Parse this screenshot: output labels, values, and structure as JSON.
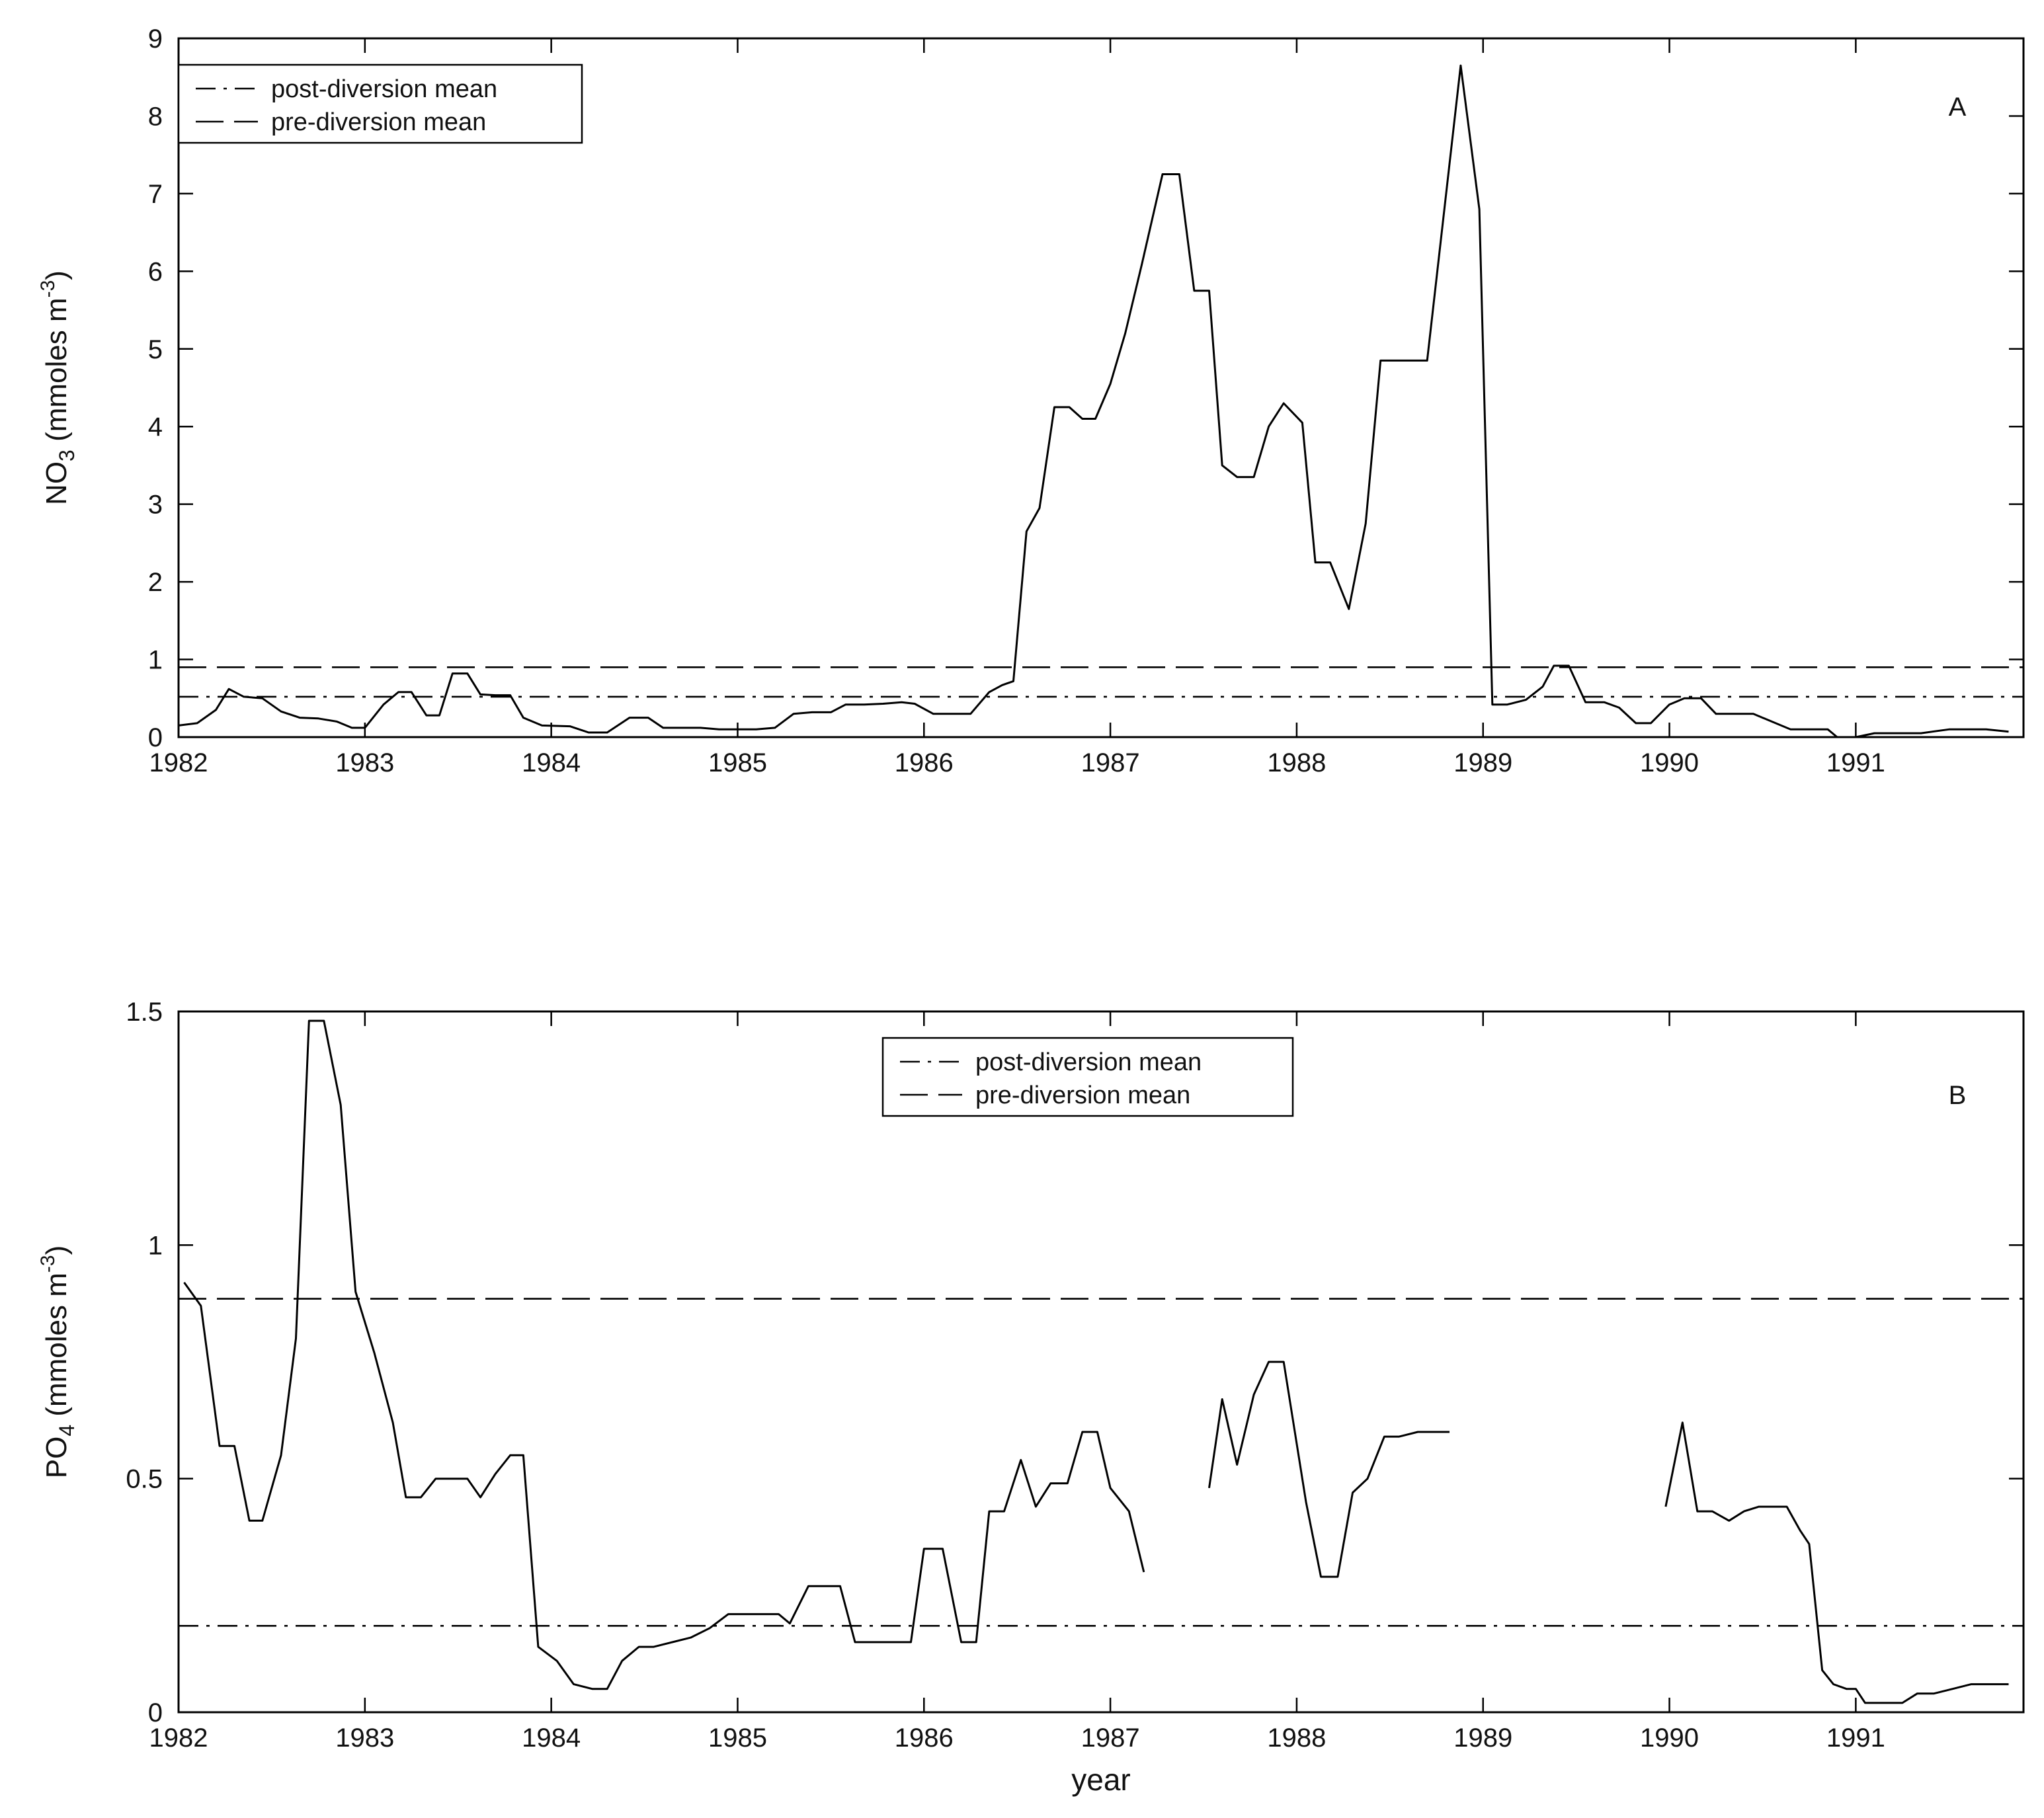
{
  "chart_data": [
    {
      "type": "line",
      "panel_label": "A",
      "xlabel": "",
      "ylabel_parts": [
        "NO",
        "3",
        "  (mmoles m",
        "-3",
        ")"
      ],
      "xlim": [
        1982,
        1991.9
      ],
      "ylim": [
        0,
        9
      ],
      "xticks": [
        1982,
        1983,
        1984,
        1985,
        1986,
        1987,
        1988,
        1989,
        1990,
        1991
      ],
      "yticks": [
        0,
        1,
        2,
        3,
        4,
        5,
        6,
        7,
        8,
        9
      ],
      "legend": {
        "placement": "top-left",
        "entries": [
          {
            "label": "post-diversion mean",
            "style": "dash-dot"
          },
          {
            "label": "pre-diversion mean",
            "style": "dashed"
          }
        ]
      },
      "reference_lines": [
        {
          "label": "post-diversion mean",
          "style": "dash-dot",
          "y": 0.52
        },
        {
          "label": "pre-diversion mean",
          "style": "dashed",
          "y": 0.9
        }
      ],
      "series": [
        {
          "style": "solid",
          "points": [
            [
              1982.0,
              0.15
            ],
            [
              1982.1,
              0.18
            ],
            [
              1982.2,
              0.35
            ],
            [
              1982.27,
              0.62
            ],
            [
              1982.35,
              0.52
            ],
            [
              1982.45,
              0.5
            ],
            [
              1982.55,
              0.33
            ],
            [
              1982.65,
              0.25
            ],
            [
              1982.75,
              0.24
            ],
            [
              1982.85,
              0.2
            ],
            [
              1982.93,
              0.12
            ],
            [
              1983.0,
              0.12
            ],
            [
              1983.1,
              0.42
            ],
            [
              1983.18,
              0.58
            ],
            [
              1983.25,
              0.58
            ],
            [
              1983.33,
              0.28
            ],
            [
              1983.4,
              0.28
            ],
            [
              1983.47,
              0.82
            ],
            [
              1983.55,
              0.82
            ],
            [
              1983.62,
              0.55
            ],
            [
              1983.7,
              0.54
            ],
            [
              1983.78,
              0.54
            ],
            [
              1983.85,
              0.25
            ],
            [
              1983.95,
              0.15
            ],
            [
              1984.1,
              0.14
            ],
            [
              1984.2,
              0.06
            ],
            [
              1984.3,
              0.06
            ],
            [
              1984.42,
              0.25
            ],
            [
              1984.52,
              0.25
            ],
            [
              1984.6,
              0.12
            ],
            [
              1984.7,
              0.12
            ],
            [
              1984.8,
              0.12
            ],
            [
              1984.9,
              0.1
            ],
            [
              1985.0,
              0.1
            ],
            [
              1985.1,
              0.1
            ],
            [
              1985.2,
              0.12
            ],
            [
              1985.3,
              0.3
            ],
            [
              1985.4,
              0.32
            ],
            [
              1985.5,
              0.32
            ],
            [
              1985.58,
              0.42
            ],
            [
              1985.68,
              0.42
            ],
            [
              1985.78,
              0.43
            ],
            [
              1985.88,
              0.45
            ],
            [
              1985.95,
              0.43
            ],
            [
              1986.05,
              0.3
            ],
            [
              1986.15,
              0.3
            ],
            [
              1986.25,
              0.3
            ],
            [
              1986.35,
              0.58
            ],
            [
              1986.42,
              0.67
            ],
            [
              1986.48,
              0.72
            ],
            [
              1986.55,
              2.65
            ],
            [
              1986.62,
              2.95
            ],
            [
              1986.7,
              4.25
            ],
            [
              1986.78,
              4.25
            ],
            [
              1986.85,
              4.1
            ],
            [
              1986.92,
              4.1
            ],
            [
              1987.0,
              4.55
            ],
            [
              1987.08,
              5.2
            ],
            [
              1987.17,
              6.1
            ],
            [
              1987.28,
              7.25
            ],
            [
              1987.37,
              7.25
            ],
            [
              1987.45,
              5.75
            ],
            [
              1987.53,
              5.75
            ],
            [
              1987.6,
              3.5
            ],
            [
              1987.68,
              3.35
            ],
            [
              1987.77,
              3.35
            ],
            [
              1987.85,
              4.0
            ],
            [
              1987.93,
              4.3
            ],
            [
              1988.03,
              4.05
            ],
            [
              1988.1,
              2.25
            ],
            [
              1988.18,
              2.25
            ],
            [
              1988.28,
              1.65
            ],
            [
              1988.37,
              2.75
            ],
            [
              1988.45,
              4.85
            ],
            [
              1988.55,
              4.85
            ],
            [
              1988.65,
              4.85
            ],
            [
              1988.7,
              4.85
            ],
            [
              1988.88,
              8.65
            ],
            [
              1988.98,
              6.8
            ],
            [
              1989.05,
              0.42
            ],
            [
              1989.13,
              0.42
            ],
            [
              1989.23,
              0.48
            ],
            [
              1989.32,
              0.65
            ],
            [
              1989.38,
              0.92
            ],
            [
              1989.46,
              0.92
            ],
            [
              1989.55,
              0.45
            ],
            [
              1989.65,
              0.45
            ],
            [
              1989.73,
              0.38
            ],
            [
              1989.82,
              0.18
            ],
            [
              1989.9,
              0.18
            ],
            [
              1990.0,
              0.42
            ],
            [
              1990.08,
              0.5
            ],
            [
              1990.17,
              0.5
            ],
            [
              1990.25,
              0.3
            ],
            [
              1990.35,
              0.3
            ],
            [
              1990.45,
              0.3
            ],
            [
              1990.55,
              0.2
            ],
            [
              1990.65,
              0.1
            ],
            [
              1990.75,
              0.1
            ],
            [
              1990.85,
              0.1
            ],
            [
              1990.9,
              0.0
            ],
            [
              1991.0,
              0.0
            ],
            [
              1991.1,
              0.05
            ],
            [
              1991.2,
              0.05
            ],
            [
              1991.35,
              0.05
            ],
            [
              1991.5,
              0.1
            ],
            [
              1991.6,
              0.1
            ],
            [
              1991.7,
              0.1
            ],
            [
              1991.82,
              0.07
            ]
          ]
        }
      ]
    },
    {
      "type": "line",
      "panel_label": "B",
      "xlabel": "year",
      "ylabel_parts": [
        "PO",
        "4",
        "  (mmoles m",
        "-3",
        ")"
      ],
      "xlim": [
        1982,
        1991.9
      ],
      "ylim": [
        0,
        1.5
      ],
      "xticks": [
        1982,
        1983,
        1984,
        1985,
        1986,
        1987,
        1988,
        1989,
        1990,
        1991
      ],
      "yticks": [
        0,
        0.5,
        1,
        1.5
      ],
      "legend": {
        "placement": "top-center",
        "entries": [
          {
            "label": "post-diversion mean",
            "style": "dash-dot"
          },
          {
            "label": "pre-diversion mean",
            "style": "dashed"
          }
        ]
      },
      "reference_lines": [
        {
          "label": "post-diversion mean",
          "style": "dash-dot",
          "y": 0.185
        },
        {
          "label": "pre-diversion mean",
          "style": "dashed",
          "y": 0.885
        }
      ],
      "series": [
        {
          "style": "solid",
          "segments": [
            [
              [
                1982.03,
                0.92
              ],
              [
                1982.12,
                0.87
              ],
              [
                1982.22,
                0.57
              ],
              [
                1982.3,
                0.57
              ],
              [
                1982.38,
                0.41
              ],
              [
                1982.45,
                0.41
              ],
              [
                1982.55,
                0.55
              ],
              [
                1982.63,
                0.8
              ],
              [
                1982.7,
                1.48
              ],
              [
                1982.78,
                1.48
              ],
              [
                1982.87,
                1.3
              ],
              [
                1982.95,
                0.9
              ],
              [
                1983.05,
                0.77
              ],
              [
                1983.15,
                0.62
              ],
              [
                1983.22,
                0.46
              ],
              [
                1983.3,
                0.46
              ],
              [
                1983.38,
                0.5
              ],
              [
                1983.48,
                0.5
              ],
              [
                1983.55,
                0.5
              ],
              [
                1983.62,
                0.46
              ],
              [
                1983.7,
                0.51
              ],
              [
                1983.78,
                0.55
              ],
              [
                1983.85,
                0.55
              ],
              [
                1983.93,
                0.14
              ],
              [
                1984.03,
                0.11
              ],
              [
                1984.12,
                0.06
              ],
              [
                1984.22,
                0.05
              ],
              [
                1984.3,
                0.05
              ],
              [
                1984.38,
                0.11
              ],
              [
                1984.47,
                0.14
              ],
              [
                1984.55,
                0.14
              ],
              [
                1984.65,
                0.15
              ],
              [
                1984.75,
                0.16
              ],
              [
                1984.85,
                0.18
              ],
              [
                1984.95,
                0.21
              ],
              [
                1985.03,
                0.21
              ],
              [
                1985.12,
                0.21
              ],
              [
                1985.22,
                0.21
              ],
              [
                1985.28,
                0.19
              ],
              [
                1985.38,
                0.27
              ],
              [
                1985.48,
                0.27
              ],
              [
                1985.55,
                0.27
              ],
              [
                1985.63,
                0.15
              ],
              [
                1985.73,
                0.15
              ],
              [
                1985.83,
                0.15
              ],
              [
                1985.93,
                0.15
              ],
              [
                1986.0,
                0.35
              ],
              [
                1986.1,
                0.35
              ],
              [
                1986.2,
                0.15
              ],
              [
                1986.28,
                0.15
              ],
              [
                1986.35,
                0.43
              ],
              [
                1986.43,
                0.43
              ],
              [
                1986.52,
                0.54
              ],
              [
                1986.6,
                0.44
              ],
              [
                1986.68,
                0.49
              ],
              [
                1986.77,
                0.49
              ],
              [
                1986.85,
                0.6
              ],
              [
                1986.93,
                0.6
              ],
              [
                1987.0,
                0.48
              ],
              [
                1987.1,
                0.43
              ],
              [
                1987.18,
                0.3
              ]
            ],
            [
              [
                1987.53,
                0.48
              ],
              [
                1987.6,
                0.67
              ],
              [
                1987.68,
                0.53
              ],
              [
                1987.77,
                0.68
              ],
              [
                1987.85,
                0.75
              ],
              [
                1987.93,
                0.75
              ],
              [
                1988.05,
                0.45
              ],
              [
                1988.13,
                0.29
              ],
              [
                1988.22,
                0.29
              ],
              [
                1988.3,
                0.47
              ],
              [
                1988.38,
                0.5
              ],
              [
                1988.47,
                0.59
              ],
              [
                1988.55,
                0.59
              ],
              [
                1988.65,
                0.6
              ],
              [
                1988.72,
                0.6
              ],
              [
                1988.82,
                0.6
              ]
            ],
            [
              [
                1989.98,
                0.44
              ],
              [
                1990.07,
                0.62
              ],
              [
                1990.15,
                0.43
              ],
              [
                1990.23,
                0.43
              ],
              [
                1990.32,
                0.41
              ],
              [
                1990.4,
                0.43
              ],
              [
                1990.48,
                0.44
              ],
              [
                1990.55,
                0.44
              ],
              [
                1990.63,
                0.44
              ],
              [
                1990.7,
                0.39
              ],
              [
                1990.75,
                0.36
              ],
              [
                1990.82,
                0.09
              ],
              [
                1990.88,
                0.06
              ],
              [
                1990.95,
                0.05
              ],
              [
                1991.0,
                0.05
              ],
              [
                1991.05,
                0.02
              ],
              [
                1991.15,
                0.02
              ],
              [
                1991.25,
                0.02
              ],
              [
                1991.33,
                0.04
              ],
              [
                1991.42,
                0.04
              ],
              [
                1991.52,
                0.05
              ],
              [
                1991.62,
                0.06
              ],
              [
                1991.82,
                0.06
              ]
            ]
          ]
        }
      ]
    }
  ]
}
